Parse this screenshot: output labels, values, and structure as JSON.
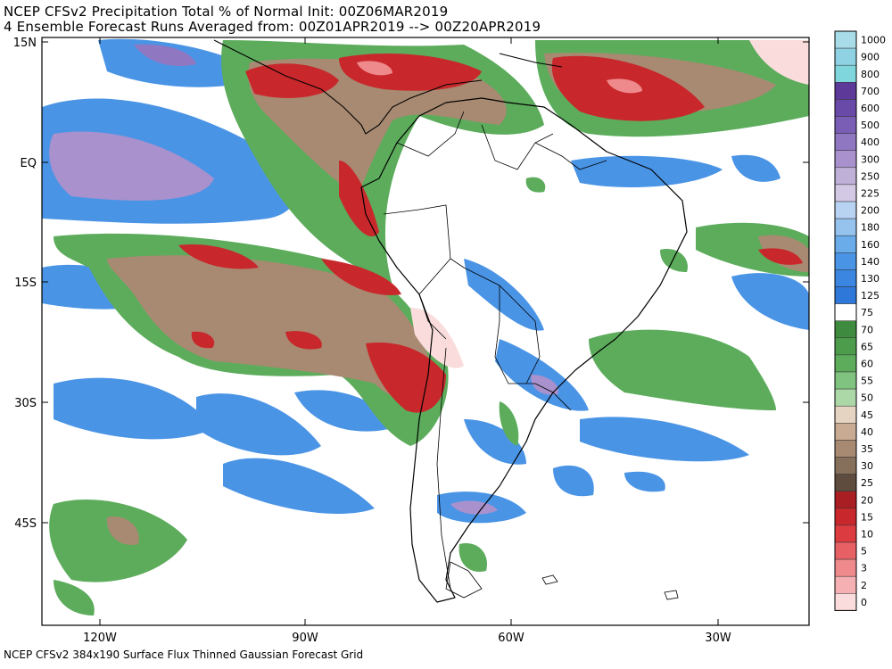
{
  "title_line1": "NCEP CFSv2 Precipitation Total % of Normal Init: 00Z06MAR2019",
  "title_line2": "4 Ensemble Forecast Runs Averaged from: 00Z01APR2019 --> 00Z20APR2019",
  "footer": "NCEP CFSv2 384x190 Surface Flux Thinned Gaussian Forecast Grid",
  "lat_labels": [
    "15N",
    "EQ",
    "15S",
    "30S",
    "45S"
  ],
  "lon_labels": [
    "120W",
    "90W",
    "60W",
    "30W"
  ],
  "legend": [
    {
      "label": "1000",
      "color": "#a8dce8"
    },
    {
      "label": "900",
      "color": "#8fd2e4"
    },
    {
      "label": "800",
      "color": "#7fd6dc"
    },
    {
      "label": "700",
      "color": "#5d3a99"
    },
    {
      "label": "600",
      "color": "#6a4aa8"
    },
    {
      "label": "500",
      "color": "#7a5eb6"
    },
    {
      "label": "400",
      "color": "#9077c2"
    },
    {
      "label": "300",
      "color": "#a891cc"
    },
    {
      "label": "250",
      "color": "#bfb0d8"
    },
    {
      "label": "225",
      "color": "#d3c9e4"
    },
    {
      "label": "200",
      "color": "#b8d2f2"
    },
    {
      "label": "180",
      "color": "#96c2ee"
    },
    {
      "label": "160",
      "color": "#6aabea"
    },
    {
      "label": "140",
      "color": "#4a94e6"
    },
    {
      "label": "130",
      "color": "#3a86e0"
    },
    {
      "label": "125",
      "color": "#2e78da"
    },
    {
      "label": "75",
      "color": "#ffffff"
    },
    {
      "label": "70",
      "color": "#3e8a3e"
    },
    {
      "label": "65",
      "color": "#4c9c4c"
    },
    {
      "label": "60",
      "color": "#5cac5c"
    },
    {
      "label": "55",
      "color": "#80c280"
    },
    {
      "label": "50",
      "color": "#acd8a8"
    },
    {
      "label": "45",
      "color": "#e6d4c2"
    },
    {
      "label": "40",
      "color": "#c8ab92"
    },
    {
      "label": "35",
      "color": "#a88a72"
    },
    {
      "label": "30",
      "color": "#86705c"
    },
    {
      "label": "25",
      "color": "#5e4c3e"
    },
    {
      "label": "20",
      "color": "#a81e22"
    },
    {
      "label": "15",
      "color": "#c8282c"
    },
    {
      "label": "10",
      "color": "#dc3c40"
    },
    {
      "label": "5",
      "color": "#e66064"
    },
    {
      "label": "3",
      "color": "#ee8a8c"
    },
    {
      "label": "2",
      "color": "#f4b0b2"
    },
    {
      "label": "0",
      "color": "#fadcdc"
    }
  ]
}
